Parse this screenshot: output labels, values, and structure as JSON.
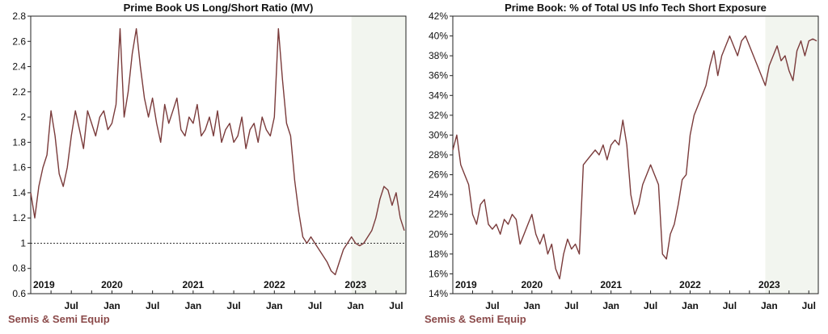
{
  "footer_left": "Semis & Semi Equip",
  "footer_right": "Semis & Semi Equip",
  "colors": {
    "line": "#7a3b3b",
    "shade": "#f2f5ef",
    "refline": "#333333",
    "footer": "#8b4a4a"
  },
  "chart_data": [
    {
      "type": "line",
      "title": "Prime Book US Long/Short Ratio (MV)",
      "ylim": [
        0.6,
        2.8
      ],
      "yticks": [
        "0.6",
        "0.8",
        "1",
        "1.2",
        "1.4",
        "1.6",
        "1.8",
        "2",
        "2.2",
        "2.4",
        "2.6",
        "2.8"
      ],
      "xlim": [
        2019.0,
        2023.62
      ],
      "year_labels": [
        "2019",
        "2020",
        "2021",
        "2022",
        "2023"
      ],
      "month_labels": [
        "Jul",
        "Jan",
        "Jul",
        "Jan",
        "Jul",
        "Jan",
        "Jul",
        "Jan",
        "Jul"
      ],
      "reference_line": 1,
      "shaded_x": [
        2022.95,
        2023.62
      ],
      "grid": false,
      "series": [
        {
          "x": [
            2019.0,
            2019.05,
            2019.1,
            2019.15,
            2019.2,
            2019.25,
            2019.3,
            2019.35,
            2019.4,
            2019.45,
            2019.5,
            2019.55,
            2019.6,
            2019.65,
            2019.7,
            2019.75,
            2019.8,
            2019.85,
            2019.9,
            2019.95,
            2020.0,
            2020.05,
            2020.1,
            2020.15,
            2020.2,
            2020.25,
            2020.3,
            2020.35,
            2020.4,
            2020.45,
            2020.5,
            2020.55,
            2020.6,
            2020.65,
            2020.7,
            2020.75,
            2020.8,
            2020.85,
            2020.9,
            2020.95,
            2021.0,
            2021.05,
            2021.1,
            2021.15,
            2021.2,
            2021.25,
            2021.3,
            2021.35,
            2021.4,
            2021.45,
            2021.5,
            2021.55,
            2021.6,
            2021.65,
            2021.7,
            2021.75,
            2021.8,
            2021.85,
            2021.9,
            2021.95,
            2022.0,
            2022.05,
            2022.1,
            2022.15,
            2022.2,
            2022.25,
            2022.3,
            2022.35,
            2022.4,
            2022.45,
            2022.5,
            2022.55,
            2022.6,
            2022.65,
            2022.7,
            2022.75,
            2022.8,
            2022.85,
            2022.9,
            2022.95,
            2023.0,
            2023.05,
            2023.1,
            2023.15,
            2023.2,
            2023.25,
            2023.3,
            2023.35,
            2023.4,
            2023.45,
            2023.5,
            2023.55,
            2023.6
          ],
          "values": [
            1.4,
            1.2,
            1.45,
            1.6,
            1.7,
            2.05,
            1.85,
            1.55,
            1.45,
            1.6,
            1.85,
            2.05,
            1.9,
            1.75,
            2.05,
            1.95,
            1.85,
            2.0,
            2.05,
            1.9,
            1.95,
            2.1,
            2.7,
            2.0,
            2.2,
            2.5,
            2.7,
            2.4,
            2.15,
            2.0,
            2.15,
            1.95,
            1.8,
            2.1,
            1.95,
            2.05,
            2.15,
            1.9,
            1.85,
            2.0,
            1.95,
            2.1,
            1.85,
            1.9,
            2.0,
            1.85,
            2.05,
            1.8,
            1.9,
            1.95,
            1.8,
            1.85,
            2.0,
            1.75,
            1.9,
            1.95,
            1.8,
            2.0,
            1.9,
            1.85,
            2.0,
            2.7,
            2.3,
            1.95,
            1.85,
            1.5,
            1.25,
            1.05,
            1.0,
            1.05,
            1.0,
            0.95,
            0.9,
            0.85,
            0.78,
            0.75,
            0.85,
            0.95,
            1.0,
            1.05,
            1.0,
            0.98,
            1.0,
            1.05,
            1.1,
            1.2,
            1.35,
            1.45,
            1.42,
            1.3,
            1.4,
            1.2,
            1.1
          ]
        }
      ]
    },
    {
      "type": "line",
      "title": "Prime Book: % of Total US Info Tech Short Exposure",
      "ylim": [
        14,
        42
      ],
      "yticks": [
        "14%",
        "16%",
        "18%",
        "20%",
        "22%",
        "24%",
        "26%",
        "28%",
        "30%",
        "32%",
        "34%",
        "36%",
        "38%",
        "40%",
        "42%"
      ],
      "xlim": [
        2019.0,
        2023.62
      ],
      "year_labels": [
        "2019",
        "2020",
        "2021",
        "2022",
        "2023"
      ],
      "month_labels": [
        "Jul",
        "Jan",
        "Jul",
        "Jan",
        "Jul",
        "Jan",
        "Jul",
        "Jan",
        "Jul"
      ],
      "shaded_x": [
        2022.95,
        2023.62
      ],
      "grid": false,
      "series": [
        {
          "x": [
            2019.0,
            2019.05,
            2019.1,
            2019.15,
            2019.2,
            2019.25,
            2019.3,
            2019.35,
            2019.4,
            2019.45,
            2019.5,
            2019.55,
            2019.6,
            2019.65,
            2019.7,
            2019.75,
            2019.8,
            2019.85,
            2019.9,
            2019.95,
            2020.0,
            2020.05,
            2020.1,
            2020.15,
            2020.2,
            2020.25,
            2020.3,
            2020.35,
            2020.4,
            2020.45,
            2020.5,
            2020.55,
            2020.6,
            2020.65,
            2020.7,
            2020.75,
            2020.8,
            2020.85,
            2020.9,
            2020.95,
            2021.0,
            2021.05,
            2021.1,
            2021.15,
            2021.2,
            2021.25,
            2021.3,
            2021.35,
            2021.4,
            2021.45,
            2021.5,
            2021.55,
            2021.6,
            2021.65,
            2021.7,
            2021.75,
            2021.8,
            2021.85,
            2021.9,
            2021.95,
            2022.0,
            2022.05,
            2022.1,
            2022.15,
            2022.2,
            2022.25,
            2022.3,
            2022.35,
            2022.4,
            2022.45,
            2022.5,
            2022.55,
            2022.6,
            2022.65,
            2022.7,
            2022.75,
            2022.8,
            2022.85,
            2022.9,
            2022.95,
            2023.0,
            2023.05,
            2023.1,
            2023.15,
            2023.2,
            2023.25,
            2023.3,
            2023.35,
            2023.4,
            2023.45,
            2023.5,
            2023.55,
            2023.6
          ],
          "values": [
            28.5,
            30.0,
            27.0,
            26.0,
            25.0,
            22.0,
            21.0,
            23.0,
            23.5,
            21.0,
            20.5,
            21.0,
            20.0,
            21.5,
            21.0,
            22.0,
            21.5,
            19.0,
            20.0,
            21.0,
            22.0,
            20.0,
            19.0,
            20.0,
            18.0,
            19.0,
            16.5,
            15.5,
            18.0,
            19.5,
            18.5,
            19.0,
            18.0,
            27.0,
            27.5,
            28.0,
            28.5,
            28.0,
            29.0,
            27.5,
            29.0,
            29.5,
            29.0,
            31.5,
            29.0,
            24.0,
            22.0,
            23.0,
            25.0,
            26.0,
            27.0,
            26.0,
            25.0,
            18.0,
            17.5,
            20.0,
            21.0,
            23.0,
            25.5,
            26.0,
            30.0,
            32.0,
            33.0,
            34.0,
            35.0,
            37.0,
            38.5,
            36.0,
            38.0,
            39.0,
            40.0,
            39.0,
            38.0,
            39.5,
            40.0,
            39.0,
            38.0,
            37.0,
            36.0,
            35.0,
            37.0,
            38.0,
            39.0,
            37.5,
            38.0,
            36.5,
            35.5,
            38.5,
            39.5,
            38.0,
            39.5,
            39.7,
            39.5
          ]
        }
      ]
    }
  ]
}
